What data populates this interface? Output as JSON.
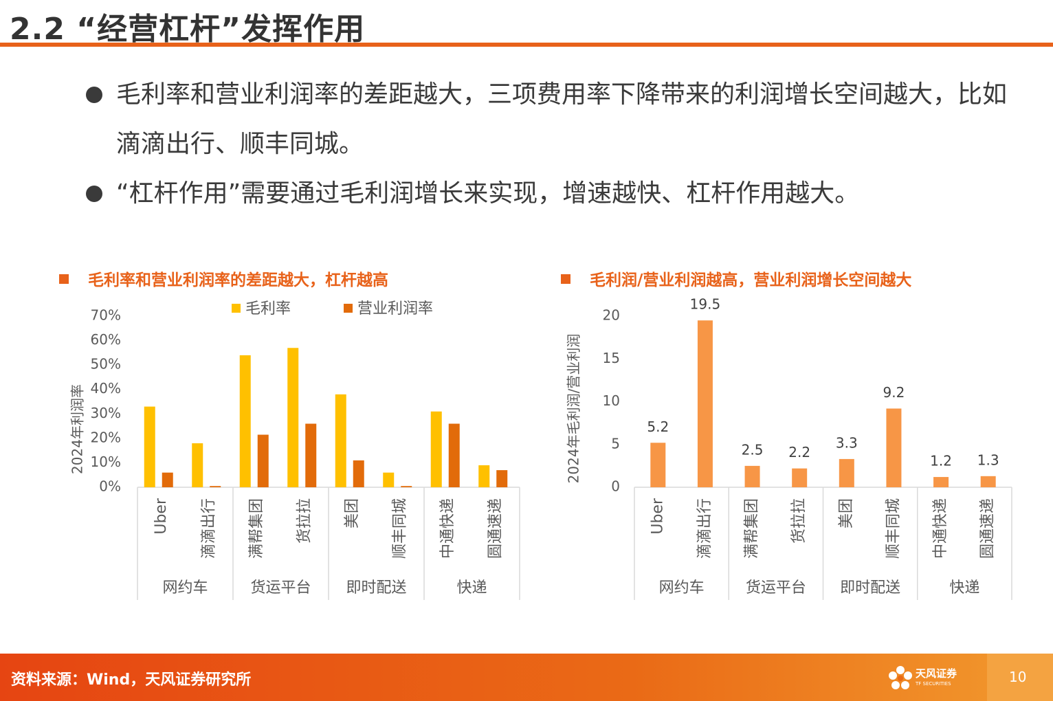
{
  "slide": {
    "title": "2.2 “经营杠杆”发挥作用",
    "bullets": [
      "毛利率和营业利润率的差距越大，三项费用率下降带来的利润增长空间越大，比如滴滴出行、顺丰同城。",
      "“杠杆作用”需要通过毛利润增长来实现，增速越快、杠杆作用越大。"
    ],
    "footer_source": "资料来源：Wind，天风证券研究所",
    "logo_text": "天风证券",
    "logo_sub": "TF SECURITIES",
    "page_number": "10"
  },
  "colors": {
    "accent": "#e8621a",
    "gross": "#ffc000",
    "op": "#e26b0a",
    "ratio": "#f79646"
  },
  "chart_data": [
    {
      "type": "bar",
      "title": "毛利率和营业利润率的差距越大，杠杆越高",
      "ylabel": "2024年利润率",
      "ylim": [
        0,
        70
      ],
      "yticks": [
        "0%",
        "10%",
        "20%",
        "30%",
        "40%",
        "50%",
        "60%",
        "70%"
      ],
      "categories": [
        "Uber",
        "滴滴出行",
        "满帮集团",
        "货拉拉",
        "美团",
        "顺丰同城",
        "中通快递",
        "圆通速递"
      ],
      "groups": [
        "网约车",
        "货运平台",
        "即时配送",
        "快递"
      ],
      "series": [
        {
          "name": "毛利率",
          "values": [
            33,
            18,
            54,
            57,
            38,
            6,
            31,
            9
          ]
        },
        {
          "name": "营业利润率",
          "values": [
            6,
            0.5,
            21.5,
            26,
            11,
            0.5,
            26,
            7
          ]
        }
      ]
    },
    {
      "type": "bar",
      "title": "毛利润/营业利润越高，营业利润增长空间越大",
      "ylabel": "2024年毛利润/营业利润",
      "ylim": [
        0,
        20
      ],
      "yticks": [
        "0",
        "5",
        "10",
        "15",
        "20"
      ],
      "categories": [
        "Uber",
        "滴滴出行",
        "满帮集团",
        "货拉拉",
        "美团",
        "顺丰同城",
        "中通快递",
        "圆通速递"
      ],
      "groups": [
        "网约车",
        "货运平台",
        "即时配送",
        "快递"
      ],
      "values": [
        5.2,
        19.5,
        2.5,
        2.2,
        3.3,
        9.2,
        1.2,
        1.3
      ],
      "labels": [
        "5.2",
        "19.5",
        "2.5",
        "2.2",
        "3.3",
        "9.2",
        "1.2",
        "1.3"
      ]
    }
  ]
}
